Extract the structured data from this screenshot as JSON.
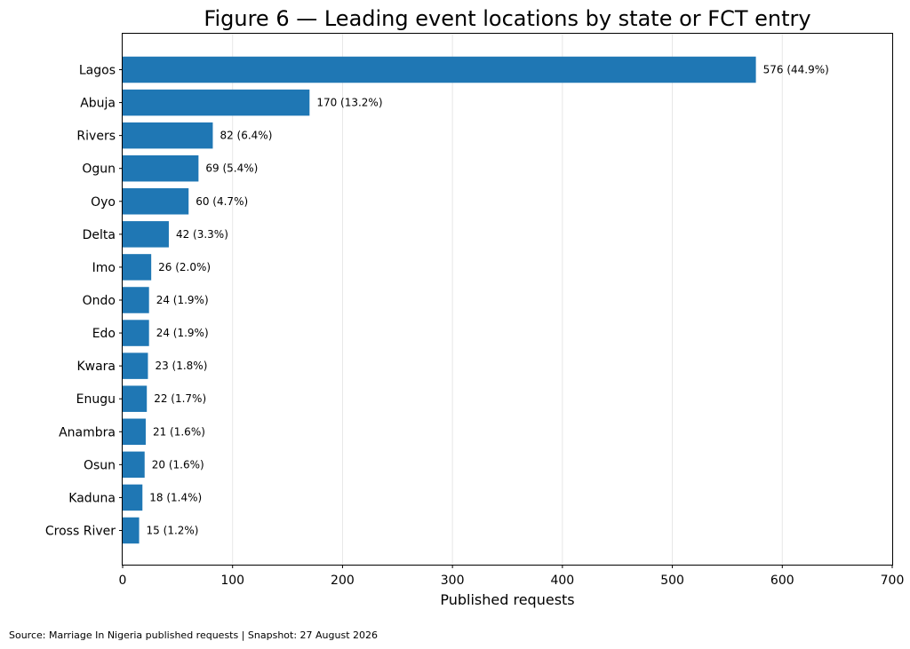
{
  "chart_data": {
    "type": "bar",
    "orientation": "horizontal",
    "title": "Figure 6 — Leading event locations by state or FCT entry",
    "xlabel": "Published requests",
    "ylabel": "",
    "xlim": [
      0,
      700
    ],
    "x_ticks": [
      "0",
      "100",
      "200",
      "300",
      "400",
      "500",
      "600",
      "700"
    ],
    "grid": "vertical",
    "bar_color": "#1f77b4",
    "categories": [
      "Lagos",
      "Abuja",
      "Rivers",
      "Ogun",
      "Oyo",
      "Delta",
      "Imo",
      "Ondo",
      "Edo",
      "Kwara",
      "Enugu",
      "Anambra",
      "Osun",
      "Kaduna",
      "Cross River"
    ],
    "values": [
      576,
      170,
      82,
      69,
      60,
      42,
      26,
      24,
      24,
      23,
      22,
      21,
      20,
      18,
      15
    ],
    "data_labels": [
      "576  (44.9%)",
      "170  (13.2%)",
      "82  (6.4%)",
      "69  (5.4%)",
      "60  (4.7%)",
      "42  (3.3%)",
      "26  (2.0%)",
      "24  (1.9%)",
      "24  (1.9%)",
      "23  (1.8%)",
      "22  (1.7%)",
      "21  (1.6%)",
      "20  (1.6%)",
      "18  (1.4%)",
      "15  (1.2%)"
    ],
    "source": "Source: Marriage In Nigeria published requests | Snapshot: 27 August 2026"
  }
}
